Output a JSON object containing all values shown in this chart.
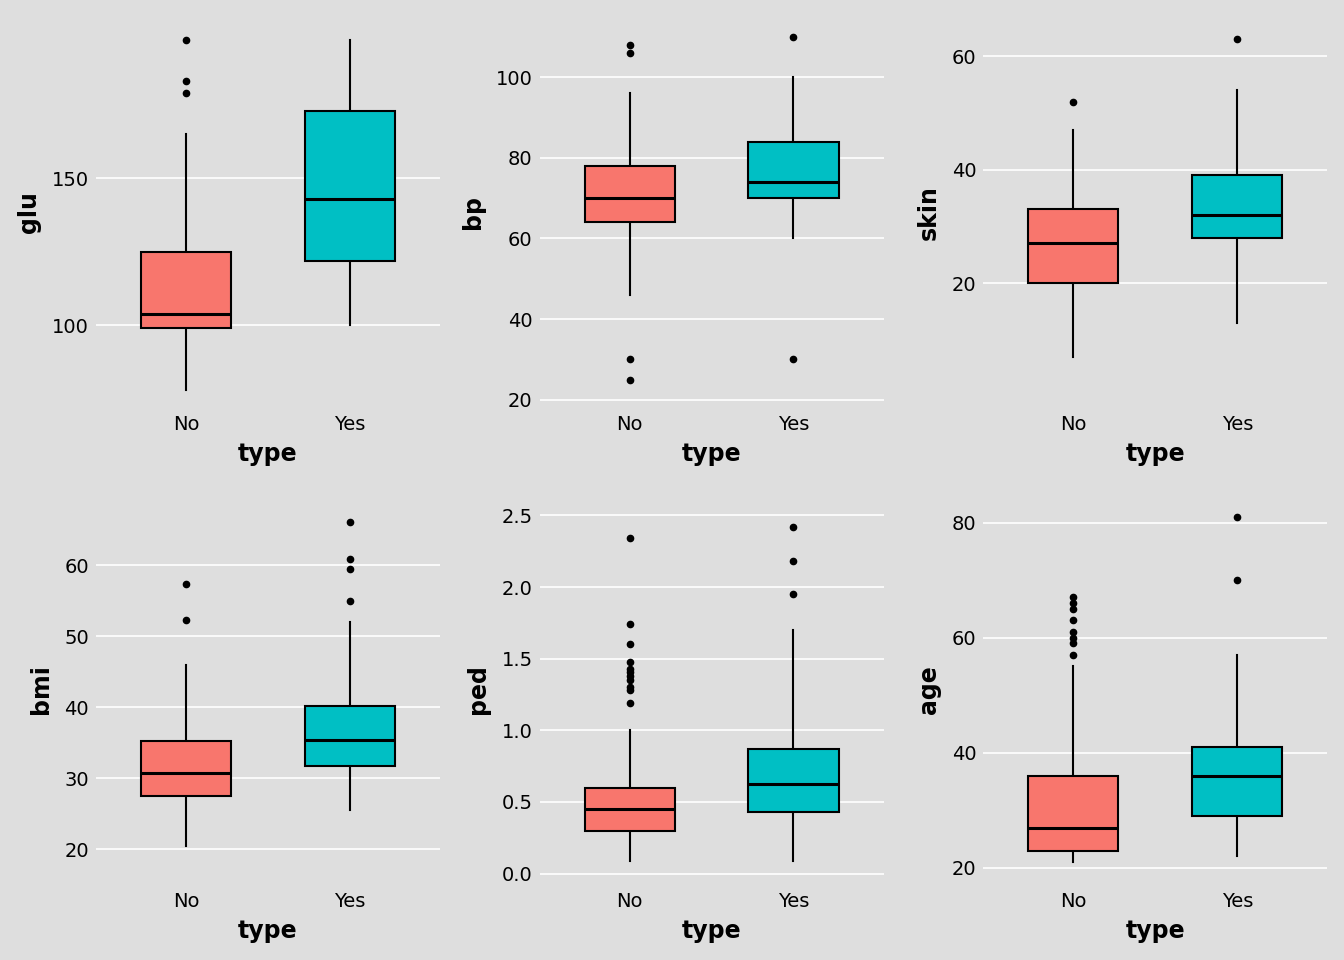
{
  "panels": [
    {
      "ylabel": "glu",
      "xlabel": "type",
      "ylim": [
        72,
        205
      ],
      "yticks": [
        100,
        150
      ],
      "ytick_labels": [
        "100",
        "150"
      ],
      "boxes": [
        {
          "label": "No",
          "color": "#F8766D",
          "q1": 99,
          "median": 104,
          "q3": 125,
          "whisker_low": 78,
          "whisker_high": 165,
          "outliers": [
            179,
            183,
            197
          ]
        },
        {
          "label": "Yes",
          "color": "#00BFC4",
          "q1": 122,
          "median": 143,
          "q3": 173,
          "whisker_low": 100,
          "whisker_high": 197,
          "outliers": []
        }
      ]
    },
    {
      "ylabel": "bp",
      "xlabel": "type",
      "ylim": [
        18,
        115
      ],
      "yticks": [
        20,
        40,
        60,
        80,
        100
      ],
      "ytick_labels": [
        "20",
        "40",
        "60",
        "80",
        "100"
      ],
      "boxes": [
        {
          "label": "No",
          "color": "#F8766D",
          "q1": 64,
          "median": 70,
          "q3": 78,
          "whisker_low": 46,
          "whisker_high": 96,
          "outliers": [
            25,
            30,
            106,
            108
          ]
        },
        {
          "label": "Yes",
          "color": "#00BFC4",
          "q1": 70,
          "median": 74,
          "q3": 84,
          "whisker_low": 60,
          "whisker_high": 100,
          "outliers": [
            30,
            110
          ]
        }
      ]
    },
    {
      "ylabel": "skin",
      "xlabel": "type",
      "ylim": [
        -2,
        67
      ],
      "yticks": [
        20,
        40,
        60
      ],
      "ytick_labels": [
        "20",
        "40",
        "60"
      ],
      "boxes": [
        {
          "label": "No",
          "color": "#F8766D",
          "q1": 20,
          "median": 27,
          "q3": 33,
          "whisker_low": 7,
          "whisker_high": 47,
          "outliers": [
            52
          ]
        },
        {
          "label": "Yes",
          "color": "#00BFC4",
          "q1": 28,
          "median": 32,
          "q3": 39,
          "whisker_low": 13,
          "whisker_high": 54,
          "outliers": [
            63
          ]
        }
      ]
    },
    {
      "ylabel": "bmi",
      "xlabel": "type",
      "ylim": [
        15,
        70
      ],
      "yticks": [
        20,
        30,
        40,
        50,
        60
      ],
      "ytick_labels": [
        "20",
        "30",
        "40",
        "50",
        "60"
      ],
      "boxes": [
        {
          "label": "No",
          "color": "#F8766D",
          "q1": 27.5,
          "median": 30.8,
          "q3": 35.3,
          "whisker_low": 20.5,
          "whisker_high": 46.0,
          "outliers": [
            52.3,
            57.3
          ]
        },
        {
          "label": "Yes",
          "color": "#00BFC4",
          "q1": 31.8,
          "median": 35.4,
          "q3": 40.2,
          "whisker_low": 25.5,
          "whisker_high": 52.0,
          "outliers": [
            55.0,
            59.4,
            60.9,
            66.0
          ]
        }
      ]
    },
    {
      "ylabel": "ped",
      "xlabel": "type",
      "ylim": [
        -0.08,
        2.65
      ],
      "yticks": [
        0.0,
        0.5,
        1.0,
        1.5,
        2.0,
        2.5
      ],
      "ytick_labels": [
        "0.0",
        "0.5",
        "1.0",
        "1.5",
        "2.0",
        "2.5"
      ],
      "boxes": [
        {
          "label": "No",
          "color": "#F8766D",
          "q1": 0.3,
          "median": 0.449,
          "q3": 0.6,
          "whisker_low": 0.09,
          "whisker_high": 1.0,
          "outliers": [
            1.19,
            1.28,
            1.3,
            1.35,
            1.38,
            1.41,
            1.43,
            1.48,
            1.6,
            1.74,
            2.34
          ]
        },
        {
          "label": "Yes",
          "color": "#00BFC4",
          "q1": 0.43,
          "median": 0.627,
          "q3": 0.87,
          "whisker_low": 0.09,
          "whisker_high": 1.7,
          "outliers": [
            1.95,
            2.18,
            2.42
          ]
        }
      ]
    },
    {
      "ylabel": "age",
      "xlabel": "type",
      "ylim": [
        17,
        85
      ],
      "yticks": [
        20,
        40,
        60,
        80
      ],
      "ytick_labels": [
        "20",
        "40",
        "60",
        "80"
      ],
      "boxes": [
        {
          "label": "No",
          "color": "#F8766D",
          "q1": 23,
          "median": 27,
          "q3": 36,
          "whisker_low": 21,
          "whisker_high": 55,
          "outliers": [
            57,
            59,
            60,
            61,
            63,
            65,
            66,
            67
          ]
        },
        {
          "label": "Yes",
          "color": "#00BFC4",
          "q1": 29,
          "median": 36,
          "q3": 41,
          "whisker_low": 22,
          "whisker_high": 57,
          "outliers": [
            70,
            81
          ]
        }
      ]
    }
  ],
  "background_color": "#DEDEDE",
  "grid_color": "#FFFFFF",
  "box_width": 0.55,
  "linewidth": 1.5,
  "median_linewidth": 2.2,
  "ylabel_fontsize": 17,
  "xlabel_fontsize": 17,
  "tick_fontsize": 14,
  "outer_bg": "#DEDEDE"
}
